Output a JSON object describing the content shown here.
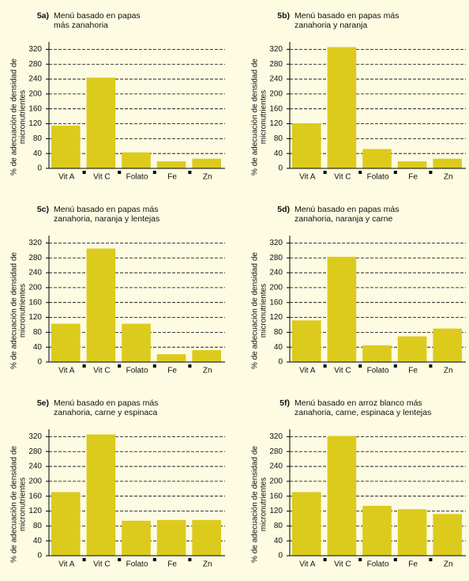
{
  "chart_data": [
    {
      "type": "bar",
      "label": "5a)",
      "title": [
        "Menú basado en papas",
        "más zanahoria"
      ],
      "ylabel": [
        "% de adecuación de densidad de",
        "micronutrientes"
      ],
      "categories": [
        "Vit A",
        "Vit C",
        "Folato",
        "Fe",
        "Zn"
      ],
      "values": [
        115,
        244,
        43,
        19,
        26
      ],
      "color": "#dccb1c",
      "ylim": [
        0,
        340
      ],
      "yticks": [
        0,
        40,
        80,
        120,
        160,
        200,
        240,
        280,
        320
      ],
      "grid": true
    },
    {
      "type": "bar",
      "label": "5b)",
      "title": [
        "Menú basado en papas más",
        "zanahoria y naranja"
      ],
      "ylabel": [
        "% de adecuación de densidad de",
        "micronutrientes"
      ],
      "categories": [
        "Vit A",
        "Vit C",
        "Folato",
        "Fe",
        "Zn"
      ],
      "values": [
        121,
        326,
        52,
        19,
        26
      ],
      "color": "#dccb1c",
      "ylim": [
        0,
        340
      ],
      "yticks": [
        0,
        40,
        80,
        120,
        160,
        200,
        240,
        280,
        320
      ],
      "grid": true
    },
    {
      "type": "bar",
      "label": "5c)",
      "title": [
        "Menú basado en papas más",
        "zanahoria, naranja y lentejas"
      ],
      "ylabel": [
        "% de adecuación de densidad de",
        "micronutrientes"
      ],
      "categories": [
        "Vit A",
        "Vit C",
        "Folato",
        "Fe",
        "Zn"
      ],
      "values": [
        103,
        305,
        103,
        21,
        32
      ],
      "color": "#dccb1c",
      "ylim": [
        0,
        340
      ],
      "yticks": [
        0,
        40,
        80,
        120,
        160,
        200,
        240,
        280,
        320
      ],
      "grid": true
    },
    {
      "type": "bar",
      "label": "5d)",
      "title": [
        "Menú basado en papas más",
        "zanahoria, naranja y carne"
      ],
      "ylabel": [
        "% de adecuación de densidad de",
        "micronutrientes"
      ],
      "categories": [
        "Vit A",
        "Vit C",
        "Folato",
        "Fe",
        "Zn"
      ],
      "values": [
        112,
        283,
        45,
        69,
        90
      ],
      "color": "#dccb1c",
      "ylim": [
        0,
        340
      ],
      "yticks": [
        0,
        40,
        80,
        120,
        160,
        200,
        240,
        280,
        320
      ],
      "grid": true
    },
    {
      "type": "bar",
      "label": "5e)",
      "title": [
        "Menú basado en papas más",
        "zanahoria, carne y espinaca"
      ],
      "ylabel": [
        "% de adecuación de densidad de",
        "micronutrientes"
      ],
      "categories": [
        "Vit A",
        "Vit C",
        "Folato",
        "Fe",
        "Zn"
      ],
      "values": [
        171,
        326,
        94,
        96,
        96
      ],
      "color": "#dccb1c",
      "ylim": [
        0,
        340
      ],
      "yticks": [
        0,
        40,
        80,
        120,
        160,
        200,
        240,
        280,
        320
      ],
      "grid": true
    },
    {
      "type": "bar",
      "label": "5f)",
      "title": [
        "Menú basado en arroz blanco más",
        "zanahoria, carne, espinaca y lentejas"
      ],
      "ylabel": [
        "% de adecuación de densidad de",
        "micronutrientes"
      ],
      "categories": [
        "Vit A",
        "Vit C",
        "Folato",
        "Fe",
        "Zn"
      ],
      "values": [
        171,
        322,
        134,
        125,
        112
      ],
      "color": "#dccb1c",
      "ylim": [
        0,
        340
      ],
      "yticks": [
        0,
        40,
        80,
        120,
        160,
        200,
        240,
        280,
        320
      ],
      "grid": true
    }
  ]
}
